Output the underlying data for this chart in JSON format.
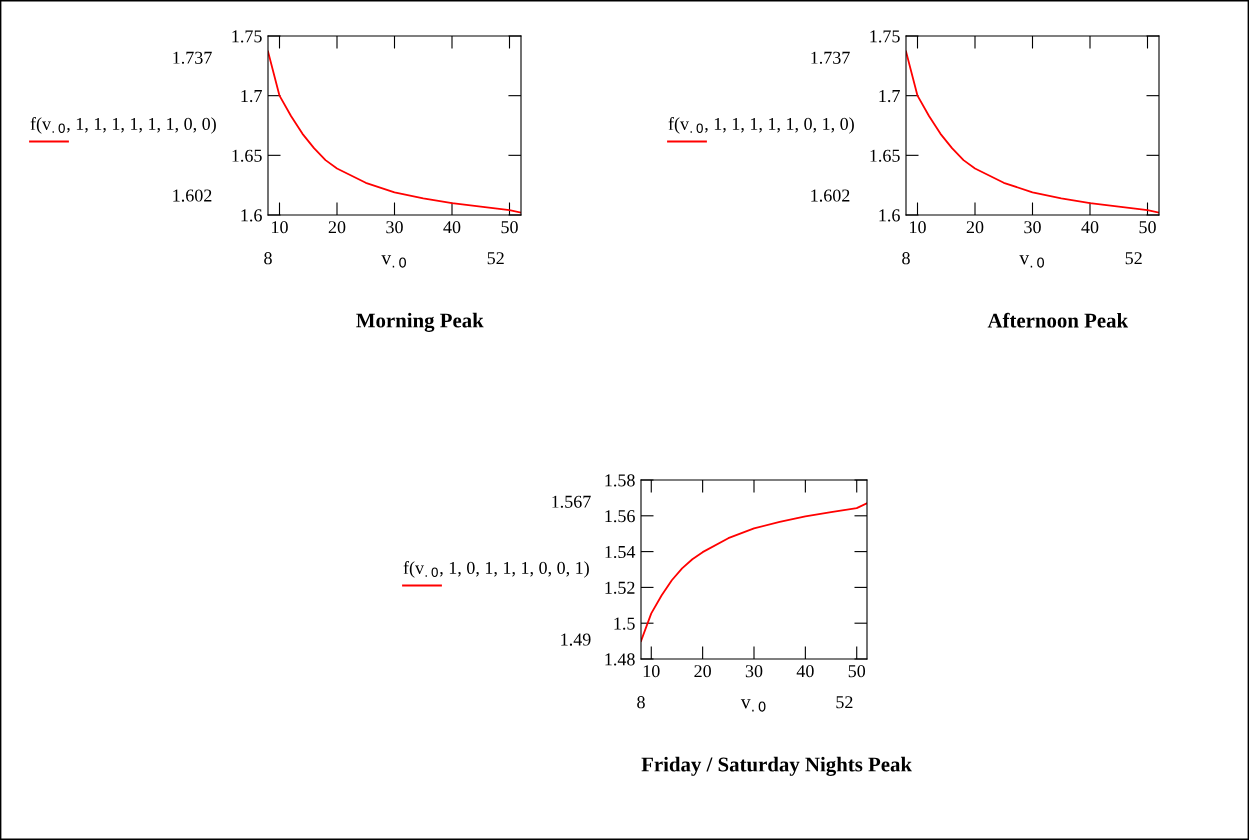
{
  "chart_data": [
    {
      "type": "line",
      "title": "Morning Peak",
      "xlabel": "v$_{.0}$",
      "x": [
        8,
        10,
        12,
        14,
        16,
        18,
        20,
        25,
        30,
        35,
        40,
        45,
        50,
        52
      ],
      "series": [
        {
          "name": "f(v$_{.0}$, 1, 1, 1, 1, 1, 1, 0, 0)",
          "color": "#ff0000",
          "values": [
            1.737,
            1.7,
            1.683,
            1.668,
            1.656,
            1.646,
            1.639,
            1.627,
            1.619,
            1.614,
            1.61,
            1.607,
            1.604,
            1.602
          ]
        }
      ],
      "xlim": [
        8,
        52
      ],
      "xticks": [
        10,
        20,
        30,
        40,
        50
      ],
      "ylim": [
        1.6,
        1.75
      ],
      "yticks": [
        1.6,
        1.65,
        1.7,
        1.75
      ],
      "grid": false,
      "legend": "left",
      "annotations": [
        "1.737",
        "1.602",
        "8",
        "52"
      ]
    },
    {
      "type": "line",
      "title": "Afternoon Peak",
      "xlabel": "v$_{.0}$",
      "x": [
        8,
        10,
        12,
        14,
        16,
        18,
        20,
        25,
        30,
        35,
        40,
        45,
        50,
        52
      ],
      "series": [
        {
          "name": "f(v$_{.0}$, 1, 1, 1, 1, 1, 0, 1, 0)",
          "color": "#ff0000",
          "values": [
            1.737,
            1.7,
            1.683,
            1.668,
            1.656,
            1.646,
            1.639,
            1.627,
            1.619,
            1.614,
            1.61,
            1.607,
            1.604,
            1.602
          ]
        }
      ],
      "xlim": [
        8,
        52
      ],
      "xticks": [
        10,
        20,
        30,
        40,
        50
      ],
      "ylim": [
        1.6,
        1.75
      ],
      "yticks": [
        1.6,
        1.65,
        1.7,
        1.75
      ],
      "grid": false,
      "legend": "left",
      "annotations": [
        "1.737",
        "1.602",
        "8",
        "52"
      ]
    },
    {
      "type": "line",
      "title": "Friday / Saturday Nights Peak",
      "xlabel": "v$_{.0}$",
      "x": [
        8,
        10,
        12,
        14,
        16,
        18,
        20,
        25,
        30,
        35,
        40,
        45,
        50,
        52
      ],
      "series": [
        {
          "name": "f(v$_{.0}$, 1, 0, 1, 1, 1, 0, 0, 1)",
          "color": "#ff0000",
          "values": [
            1.49,
            1.5055,
            1.5155,
            1.524,
            1.5306,
            1.5357,
            1.5397,
            1.5475,
            1.553,
            1.5566,
            1.5597,
            1.562,
            1.5643,
            1.567
          ]
        }
      ],
      "xlim": [
        8,
        52
      ],
      "xticks": [
        10,
        20,
        30,
        40,
        50
      ],
      "ylim": [
        1.48,
        1.58
      ],
      "yticks": [
        1.48,
        1.5,
        1.52,
        1.54,
        1.56,
        1.58
      ],
      "grid": false,
      "legend": "left",
      "annotations": [
        "1.567",
        "1.49",
        "8",
        "52"
      ]
    }
  ]
}
